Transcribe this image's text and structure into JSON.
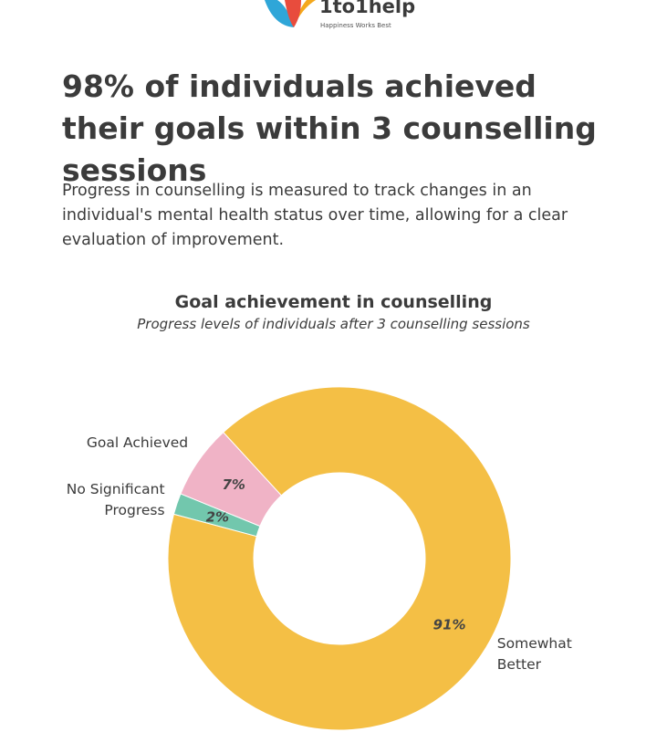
{
  "header": {
    "logo": "1to1help",
    "tagline": "Happiness Works Best"
  },
  "headline": "98% of individuals achieved their goals within 3 counselling sessions",
  "description": "Progress in counselling is measured to track changes in an individual's mental health status over time, allowing for a clear evaluation of improvement.",
  "chart_data": {
    "type": "donut",
    "title": "Goal achievement in counselling",
    "subtitle": "Progress levels of individuals after 3 counselling sessions",
    "categories": [
      "No Significant Progress",
      "Goal Achieved",
      "Somewhat Better"
    ],
    "values": [
      2,
      7,
      91
    ],
    "value_labels": [
      "2%",
      "7%",
      "91%"
    ],
    "colors": [
      "#72c7ad",
      "#f0b3c6",
      "#f4bf45"
    ]
  }
}
